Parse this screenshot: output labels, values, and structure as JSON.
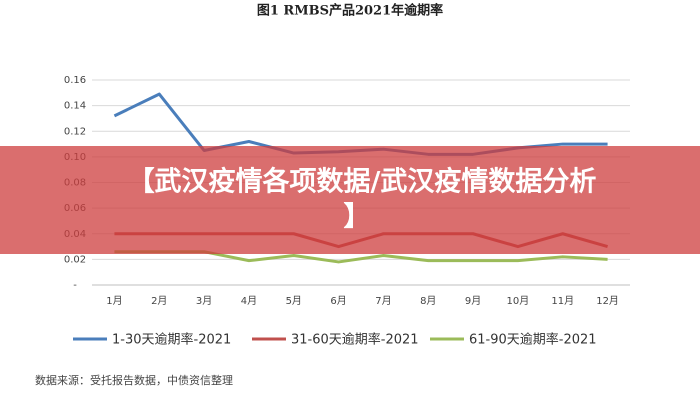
{
  "chart_data": {
    "type": "line",
    "title": "图1 RMBS产品2021年逾期率",
    "categories": [
      "1月",
      "2月",
      "3月",
      "4月",
      "5月",
      "6月",
      "7月",
      "8月",
      "9月",
      "10月",
      "11月",
      "12月"
    ],
    "series": [
      {
        "name": "1-30天逾期率-2021",
        "color": "#4a7ebb",
        "values": [
          0.132,
          0.149,
          0.105,
          0.112,
          0.103,
          0.104,
          0.106,
          0.102,
          0.102,
          0.107,
          0.11,
          0.11
        ]
      },
      {
        "name": "31-60天逾期率-2021",
        "color": "#c0504d",
        "values": [
          0.04,
          0.04,
          0.04,
          0.04,
          0.04,
          0.03,
          0.04,
          0.04,
          0.04,
          0.03,
          0.04,
          0.03
        ]
      },
      {
        "name": "61-90天逾期率-2021",
        "color": "#9bbb59",
        "values": [
          0.026,
          0.026,
          0.026,
          0.019,
          0.023,
          0.018,
          0.023,
          0.019,
          0.019,
          0.019,
          0.022,
          0.02
        ]
      }
    ],
    "ylim": [
      0,
      0.16
    ],
    "yticks": [
      {
        "value": 0,
        "label": "-"
      },
      0.02,
      0.04,
      0.06,
      0.08,
      {
        "value": 0.1,
        "label": "0.10"
      },
      0.12,
      0.14,
      0.16
    ],
    "grid": true,
    "legend": "bottom"
  },
  "source": "数据来源：受托报告数据，中债资信整理",
  "overlay": {
    "lines": [
      "【武汉疫情各项数据/武汉疫情数据分析",
      "】"
    ]
  }
}
